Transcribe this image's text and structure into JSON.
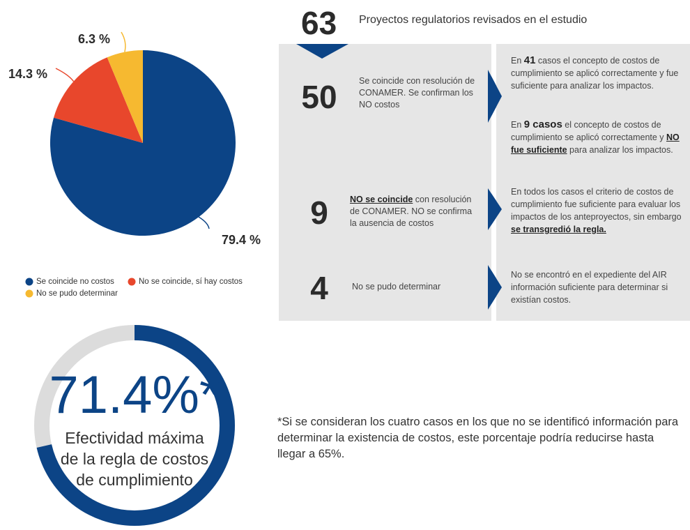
{
  "chart_data": [
    {
      "type": "pie",
      "categories": [
        "Se coincide no costos",
        "No se coincide, sí hay costos",
        "No se pudo determinar"
      ],
      "values": [
        79.4,
        14.3,
        6.3
      ],
      "value_labels": [
        "79.4 %",
        "14.3 %",
        "6.3 %"
      ],
      "colors": [
        "#0c4486",
        "#e8472c",
        "#f6b930"
      ]
    },
    {
      "type": "donut",
      "values": [
        71.4
      ],
      "value_labels": [
        "71.4%*"
      ],
      "caption": [
        "Efectividad máxima",
        "de la regla de costos",
        "de cumplimiento"
      ],
      "color": "#0c4486",
      "track_color": "#dcdcdc"
    }
  ],
  "header": {
    "count": "63",
    "text": "Proyectos regulatorios revisados en el estudio"
  },
  "rows": [
    {
      "count": "50",
      "description": [
        "Se coincide con resolución de CONAMER. Se confirman los NO costos"
      ],
      "details": [
        [
          "En ",
          "41",
          " casos el concepto de costos de cumplimiento se aplicó correctamente y fue suficiente para analizar los impactos."
        ],
        [
          "En ",
          "9 casos",
          " el concepto de costos de cumplimiento se aplicó correctamente y ",
          "NO fue suficiente",
          " para analizar los impactos."
        ]
      ]
    },
    {
      "count": "9",
      "description": [
        "NO se coincide",
        " con resolución de CONAMER. NO se confirma la ausencia de costos"
      ],
      "details": [
        [
          "En todos los casos el criterio de costos de cumplimiento fue suficiente para evaluar los impactos de los anteproyectos, sin embargo ",
          "se transgredió la regla."
        ]
      ]
    },
    {
      "count": "4",
      "description": [
        "No se pudo determinar"
      ],
      "details": [
        [
          "No se encontró en el expediente del AIR información suficiente para determinar si existían costos."
        ]
      ]
    }
  ],
  "footnote": "*Si se consideran los cuatro casos en los que no se identificó información para determinar la existencia de costos, este porcentaje podría reducirse hasta llegar a 65%."
}
